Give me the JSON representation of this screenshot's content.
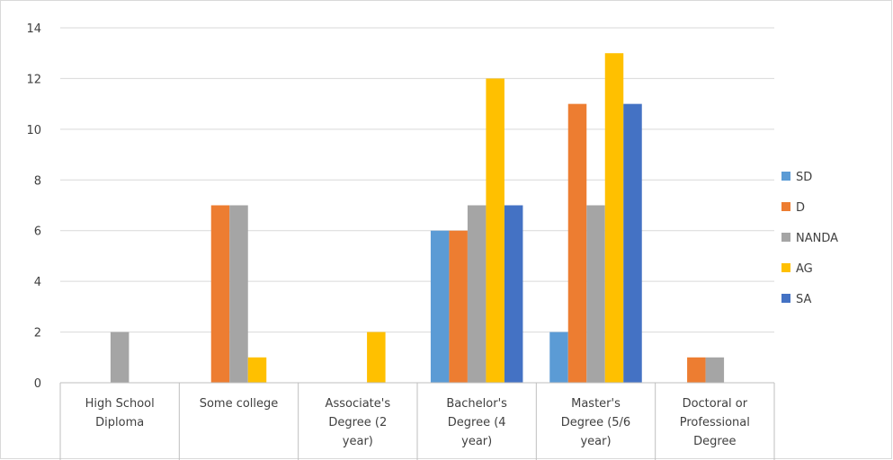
{
  "chart_data": {
    "type": "bar",
    "title": "",
    "xlabel": "",
    "ylabel": "",
    "ylim": [
      0,
      14
    ],
    "yticks": [
      0,
      2,
      4,
      6,
      8,
      10,
      12,
      14
    ],
    "grid": true,
    "legend_position": "right",
    "categories": [
      [
        "High School",
        "Diploma"
      ],
      [
        "Some college"
      ],
      [
        "Associate's",
        "Degree (2",
        "year)"
      ],
      [
        "Bachelor's",
        "Degree (4",
        "year)"
      ],
      [
        "Master's",
        "Degree (5/6",
        "year)"
      ],
      [
        "Doctoral or",
        "Professional",
        "Degree"
      ]
    ],
    "series": [
      {
        "name": "SD",
        "color": "#5B9BD5",
        "values": [
          0,
          0,
          0,
          6,
          2,
          0
        ]
      },
      {
        "name": "D",
        "color": "#ED7D31",
        "values": [
          0,
          7,
          0,
          6,
          11,
          1
        ]
      },
      {
        "name": "NANDA",
        "color": "#A5A5A5",
        "values": [
          2,
          7,
          0,
          7,
          7,
          1
        ]
      },
      {
        "name": "AG",
        "color": "#FFC000",
        "values": [
          0,
          1,
          2,
          12,
          13,
          0
        ]
      },
      {
        "name": "SA",
        "color": "#4472C4",
        "values": [
          0,
          0,
          0,
          7,
          11,
          0
        ]
      }
    ]
  }
}
